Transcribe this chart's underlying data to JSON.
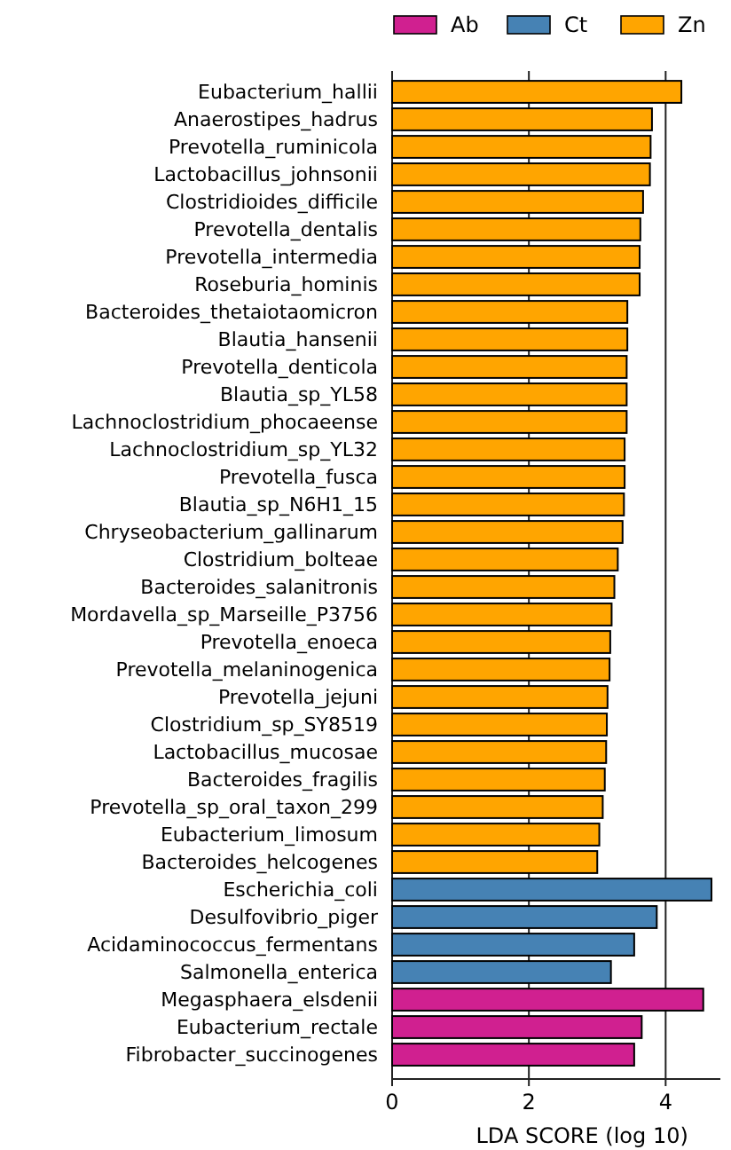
{
  "chart_data": {
    "type": "bar",
    "orientation": "horizontal",
    "xlabel": "LDA SCORE (log 10)",
    "categories": [
      "Eubacterium_hallii",
      "Anaerostipes_hadrus",
      "Prevotella_ruminicola",
      "Lactobacillus_johnsonii",
      "Clostridioides_difficile",
      "Prevotella_dentalis",
      "Prevotella_intermedia",
      "Roseburia_hominis",
      "Bacteroides_thetaiotaomicron",
      "Blautia_hansenii",
      "Prevotella_denticola",
      "Blautia_sp_YL58",
      "Lachnoclostridium_phocaeense",
      "Lachnoclostridium_sp_YL32",
      "Prevotella_fusca",
      "Blautia_sp_N6H1_15",
      "Chryseobacterium_gallinarum",
      "Clostridium_bolteae",
      "Bacteroides_salanitronis",
      "Mordavella_sp_Marseille_P3756",
      "Prevotella_enoeca",
      "Prevotella_melaninogenica",
      "Prevotella_jejuni",
      "Clostridium_sp_SY8519",
      "Lactobacillus_mucosae",
      "Bacteroides_fragilis",
      "Prevotella_sp_oral_taxon_299",
      "Eubacterium_limosum",
      "Bacteroides_helcogenes",
      "Escherichia_coli",
      "Desulfovibrio_piger",
      "Acidaminococcus_fermentans",
      "Salmonella_enterica",
      "Megasphaera_elsdenii",
      "Eubacterium_rectale",
      "Fibrobacter_succinogenes"
    ],
    "series": [
      {
        "name": "Ab",
        "color": "#d02090",
        "values": [
          null,
          null,
          null,
          null,
          null,
          null,
          null,
          null,
          null,
          null,
          null,
          null,
          null,
          null,
          null,
          null,
          null,
          null,
          null,
          null,
          null,
          null,
          null,
          null,
          null,
          null,
          null,
          null,
          null,
          null,
          null,
          null,
          null,
          4.55,
          3.65,
          3.54
        ]
      },
      {
        "name": "Ct",
        "color": "#4682b4",
        "values": [
          null,
          null,
          null,
          null,
          null,
          null,
          null,
          null,
          null,
          null,
          null,
          null,
          null,
          null,
          null,
          null,
          null,
          null,
          null,
          null,
          null,
          null,
          null,
          null,
          null,
          null,
          null,
          null,
          null,
          4.67,
          3.87,
          3.54,
          3.2,
          null,
          null,
          null
        ]
      },
      {
        "name": "Zn",
        "color": "#ffa500",
        "values": [
          4.23,
          3.8,
          3.78,
          3.77,
          3.67,
          3.63,
          3.62,
          3.62,
          3.44,
          3.44,
          3.43,
          3.43,
          3.43,
          3.4,
          3.4,
          3.39,
          3.37,
          3.3,
          3.25,
          3.21,
          3.19,
          3.18,
          3.15,
          3.14,
          3.13,
          3.11,
          3.08,
          3.03,
          3.0,
          null,
          null,
          null,
          null,
          null,
          null,
          null
        ]
      }
    ],
    "xlim": [
      0,
      4.8
    ],
    "xticks": [
      0,
      2,
      4
    ],
    "grid": "x",
    "legend": "top right"
  }
}
